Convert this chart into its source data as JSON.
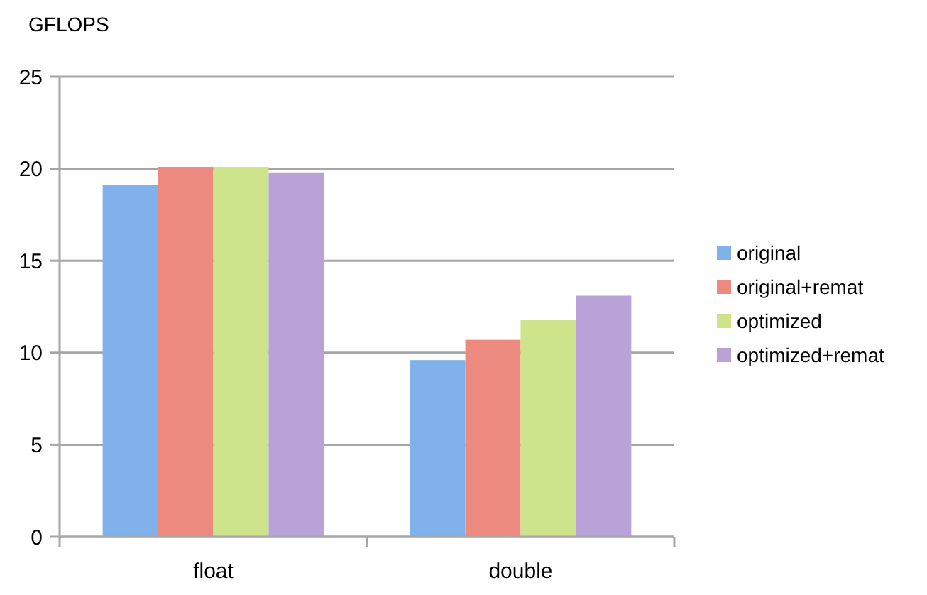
{
  "chart_data": {
    "type": "bar",
    "ylabel": "GFLOPS",
    "categories": [
      "float",
      "double"
    ],
    "series": [
      {
        "name": "original",
        "color": "#80b1ea",
        "values": [
          19.1,
          9.6
        ]
      },
      {
        "name": "original+remat",
        "color": "#ec8a80",
        "values": [
          20.1,
          10.7
        ]
      },
      {
        "name": "optimized",
        "color": "#cde48a",
        "values": [
          20.1,
          11.8
        ]
      },
      {
        "name": "optimized+remat",
        "color": "#b9a2d8",
        "values": [
          19.8,
          13.1
        ]
      }
    ],
    "ylim": [
      0,
      25
    ],
    "yticks": [
      0,
      5,
      10,
      15,
      20,
      25
    ],
    "grid": "y",
    "legend": "right"
  }
}
